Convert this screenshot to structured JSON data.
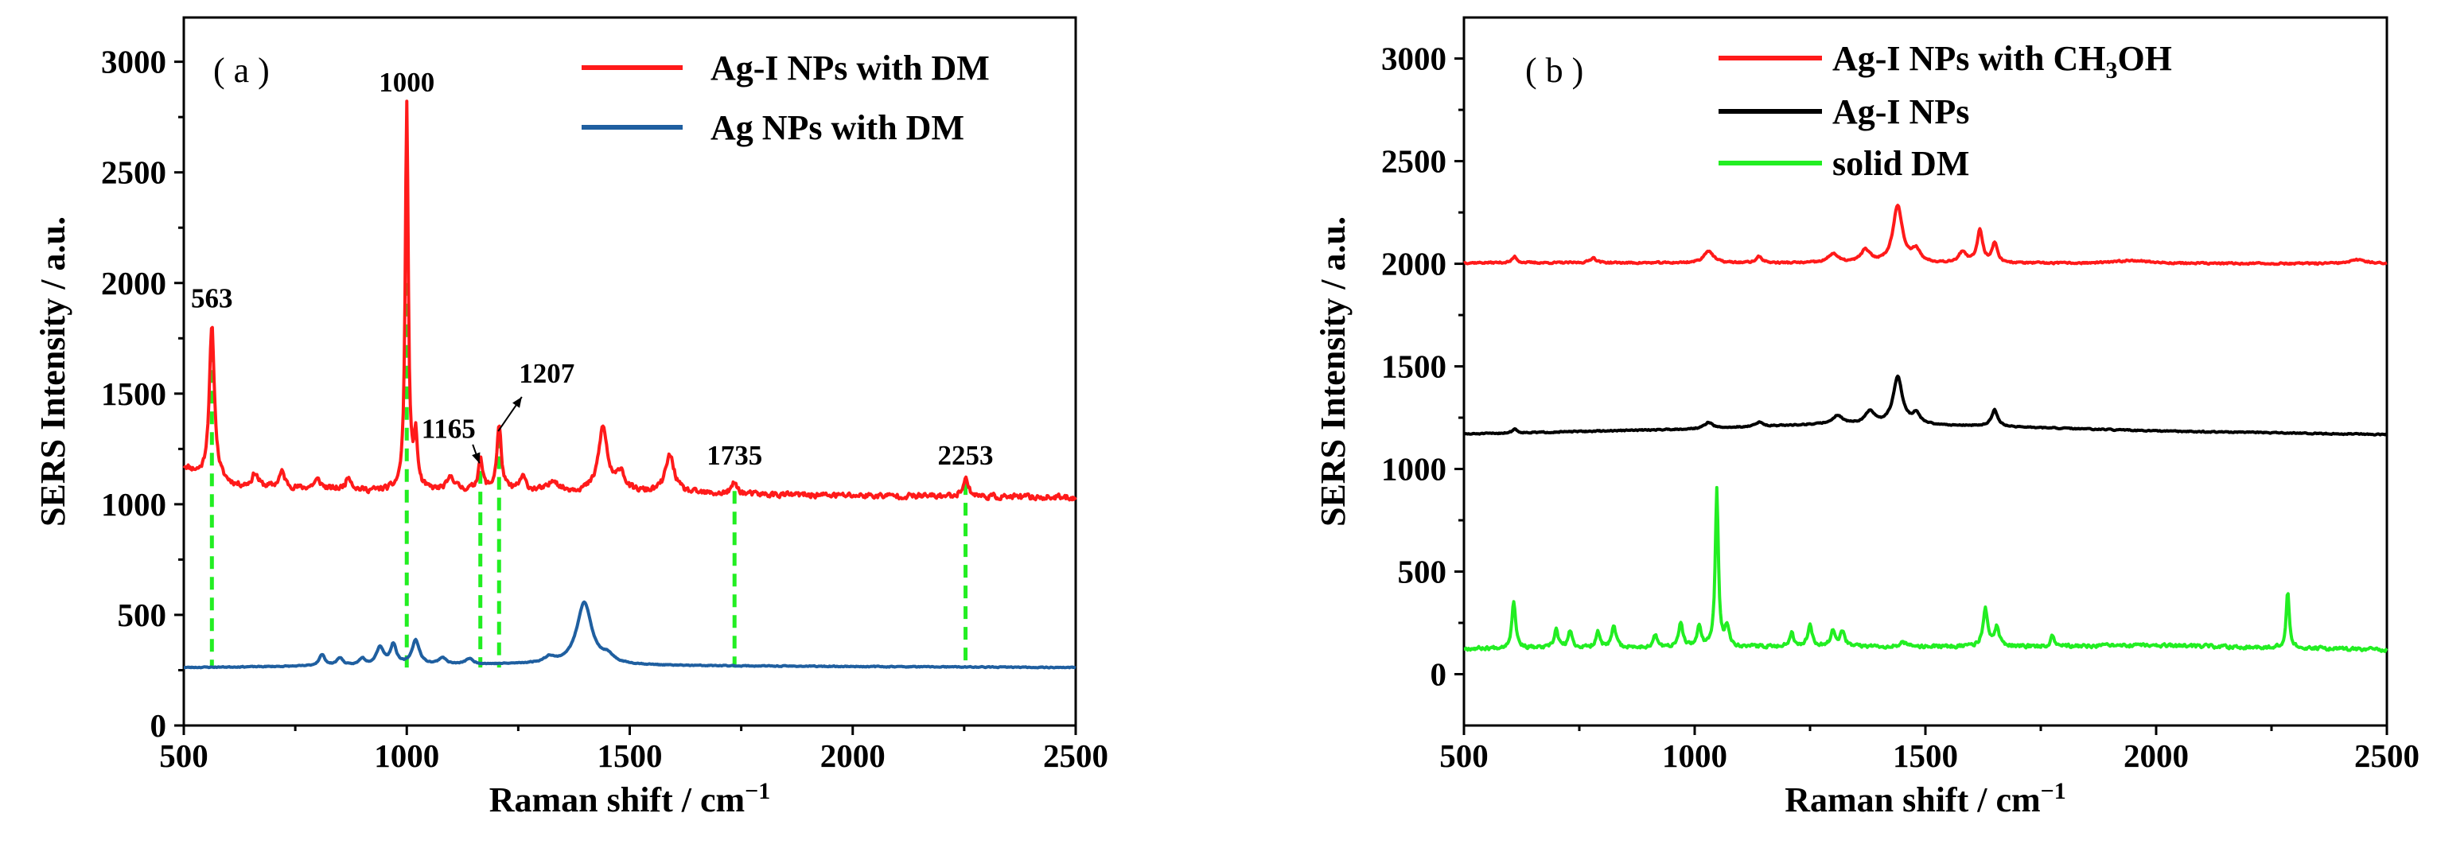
{
  "chart_data": [
    {
      "type": "line",
      "panel_label": "( a )",
      "xlabel": "Raman shift / cm",
      "xlabel_sup": "−1",
      "ylabel": "SERS Intensity / a.u.",
      "xlim": [
        500,
        2500
      ],
      "ylim": [
        0,
        3200
      ],
      "xticks": [
        500,
        1000,
        1500,
        2000,
        2500
      ],
      "yticks": [
        0,
        500,
        1000,
        1500,
        2000,
        2500,
        3000
      ],
      "legend_position": "top-right",
      "series": [
        {
          "name": "Ag-I NPs with DM",
          "color": "#ff1a1a",
          "baseline": 1030,
          "noise": 18,
          "seed": 11,
          "trend": [
            [
              500,
              1170
            ],
            [
              540,
              1120
            ],
            [
              620,
              1080
            ],
            [
              900,
              1060
            ],
            [
              1300,
              1060
            ],
            [
              1700,
              1045
            ],
            [
              2500,
              1030
            ]
          ],
          "peaks": [
            [
              563,
              690,
              7
            ],
            [
              660,
              60,
              8
            ],
            [
              720,
              70,
              8
            ],
            [
              800,
              40,
              10
            ],
            [
              870,
              60,
              8
            ],
            [
              1000,
              1740,
              4
            ],
            [
              1020,
              230,
              5
            ],
            [
              1100,
              60,
              10
            ],
            [
              1165,
              140,
              6
            ],
            [
              1207,
              290,
              6
            ],
            [
              1260,
              60,
              8
            ],
            [
              1330,
              50,
              10
            ],
            [
              1440,
              290,
              12
            ],
            [
              1480,
              90,
              10
            ],
            [
              1590,
              170,
              12
            ],
            [
              1735,
              50,
              8
            ],
            [
              2253,
              80,
              8
            ]
          ]
        },
        {
          "name": "Ag NPs with DM",
          "color": "#1f5fa0",
          "baseline": 262,
          "noise": 3,
          "seed": 23,
          "trend": [
            [
              500,
              262
            ],
            [
              900,
              270
            ],
            [
              1300,
              278
            ],
            [
              1600,
              270
            ],
            [
              2500,
              262
            ]
          ],
          "peaks": [
            [
              810,
              50,
              8
            ],
            [
              850,
              35,
              8
            ],
            [
              900,
              30,
              8
            ],
            [
              940,
              80,
              10
            ],
            [
              970,
              90,
              8
            ],
            [
              1020,
              110,
              10
            ],
            [
              1080,
              30,
              10
            ],
            [
              1140,
              25,
              10
            ],
            [
              1320,
              25,
              12
            ],
            [
              1398,
              280,
              20
            ],
            [
              1450,
              30,
              15
            ]
          ]
        }
      ],
      "peak_labels": [
        "563",
        "1000",
        "1165",
        "1207",
        "1735",
        "2253"
      ],
      "peak_markers": [
        {
          "x": 563,
          "y_top": 1700
        },
        {
          "x": 1000,
          "y_top": 2000
        },
        {
          "x": 1165,
          "y_top": 1150
        },
        {
          "x": 1207,
          "y_top": 1310
        },
        {
          "x": 1735,
          "y_top": 1060
        },
        {
          "x": 2253,
          "y_top": 1100
        }
      ]
    },
    {
      "type": "line",
      "panel_label": "( b )",
      "xlabel": "Raman shift / cm",
      "xlabel_sup": "−1",
      "ylabel": "SERS Intensity / a.u.",
      "xlim": [
        500,
        2500
      ],
      "ylim": [
        -250,
        3200
      ],
      "xticks": [
        500,
        1000,
        1500,
        2000,
        2500
      ],
      "yticks": [
        0,
        500,
        1000,
        1500,
        2000,
        2500,
        3000
      ],
      "legend_position": "top-left",
      "series": [
        {
          "name": "Ag-I NPs with CH₃OH",
          "legend_parts": [
            "Ag-I NPs with CH",
            "3",
            "OH"
          ],
          "color": "#ff1a1a",
          "baseline": 2005,
          "noise": 6,
          "seed": 37,
          "trend": [
            [
              500,
              2005
            ],
            [
              2500,
              2000
            ]
          ],
          "peaks": [
            [
              610,
              30,
              6
            ],
            [
              780,
              25,
              8
            ],
            [
              1030,
              60,
              12
            ],
            [
              1140,
              30,
              8
            ],
            [
              1300,
              45,
              12
            ],
            [
              1370,
              60,
              12
            ],
            [
              1440,
              280,
              12
            ],
            [
              1480,
              60,
              10
            ],
            [
              1580,
              50,
              10
            ],
            [
              1618,
              160,
              7
            ],
            [
              1650,
              95,
              7
            ],
            [
              1950,
              15,
              40
            ],
            [
              2440,
              20,
              20
            ]
          ]
        },
        {
          "name": "Ag-I NPs",
          "color": "#000000",
          "baseline": 1170,
          "noise": 4,
          "seed": 51,
          "trend": [
            [
              500,
              1170
            ],
            [
              1000,
              1195
            ],
            [
              1300,
              1220
            ],
            [
              1600,
              1210
            ],
            [
              2000,
              1185
            ],
            [
              2500,
              1168
            ]
          ],
          "peaks": [
            [
              610,
              20,
              6
            ],
            [
              1030,
              30,
              10
            ],
            [
              1140,
              20,
              10
            ],
            [
              1310,
              40,
              12
            ],
            [
              1380,
              60,
              12
            ],
            [
              1440,
              230,
              12
            ],
            [
              1480,
              50,
              10
            ],
            [
              1650,
              80,
              8
            ]
          ]
        },
        {
          "name": "solid DM",
          "color": "#22ee22",
          "baseline": 125,
          "noise": 12,
          "seed": 67,
          "trend": [
            [
              500,
              125
            ],
            [
              1200,
              135
            ],
            [
              1700,
              135
            ],
            [
              2000,
              140
            ],
            [
              2500,
              120
            ]
          ],
          "peaks": [
            [
              608,
              230,
              5
            ],
            [
              700,
              90,
              5
            ],
            [
              730,
              80,
              5
            ],
            [
              790,
              80,
              5
            ],
            [
              825,
              110,
              5
            ],
            [
              915,
              60,
              5
            ],
            [
              970,
              120,
              5
            ],
            [
              1010,
              100,
              5
            ],
            [
              1048,
              760,
              4
            ],
            [
              1070,
              100,
              5
            ],
            [
              1210,
              70,
              5
            ],
            [
              1250,
              100,
              6
            ],
            [
              1300,
              80,
              6
            ],
            [
              1320,
              70,
              6
            ],
            [
              1450,
              30,
              6
            ],
            [
              1630,
              180,
              6
            ],
            [
              1655,
              90,
              6
            ],
            [
              1775,
              60,
              4
            ],
            [
              2285,
              280,
              4
            ]
          ]
        }
      ]
    }
  ]
}
